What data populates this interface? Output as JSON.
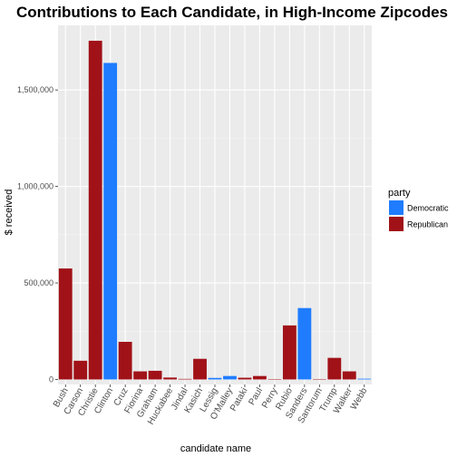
{
  "chart_data": {
    "type": "bar",
    "title": "Contributions to Each Candidate, in High-Income Zipcodes",
    "xlabel": "candidate name",
    "ylabel": "$ received",
    "ylim": [
      0,
      1800000
    ],
    "y_ticks": [
      0,
      500000,
      1000000,
      1500000
    ],
    "y_tick_labels": [
      "0",
      "500,000",
      "1,000,000",
      "1,500,000"
    ],
    "grid": true,
    "legend_position": "right",
    "legend_title": "party",
    "legend": [
      {
        "name": "Democratic",
        "color": "#1f7cff"
      },
      {
        "name": "Republican",
        "color": "#a01218"
      }
    ],
    "categories": [
      "Bush",
      "Carson",
      "Christie",
      "Clinton",
      "Cruz",
      "Fiorina",
      "Graham",
      "Huckabee",
      "Jindal",
      "Kasich",
      "Lessig",
      "O'Malley",
      "Pataki",
      "Paul",
      "Perry",
      "Rubio",
      "Sanders",
      "Santorum",
      "Trump",
      "Walker",
      "Webb"
    ],
    "parties": [
      "Republican",
      "Republican",
      "Republican",
      "Democratic",
      "Republican",
      "Republican",
      "Republican",
      "Republican",
      "Republican",
      "Republican",
      "Democratic",
      "Democratic",
      "Republican",
      "Republican",
      "Republican",
      "Republican",
      "Democratic",
      "Republican",
      "Republican",
      "Republican",
      "Democratic"
    ],
    "values": [
      575000,
      97000,
      1755000,
      1640000,
      195000,
      42000,
      45000,
      10000,
      3000,
      107000,
      8000,
      18000,
      9000,
      18000,
      1000,
      280000,
      370000,
      1000,
      112000,
      42000,
      4000
    ]
  }
}
